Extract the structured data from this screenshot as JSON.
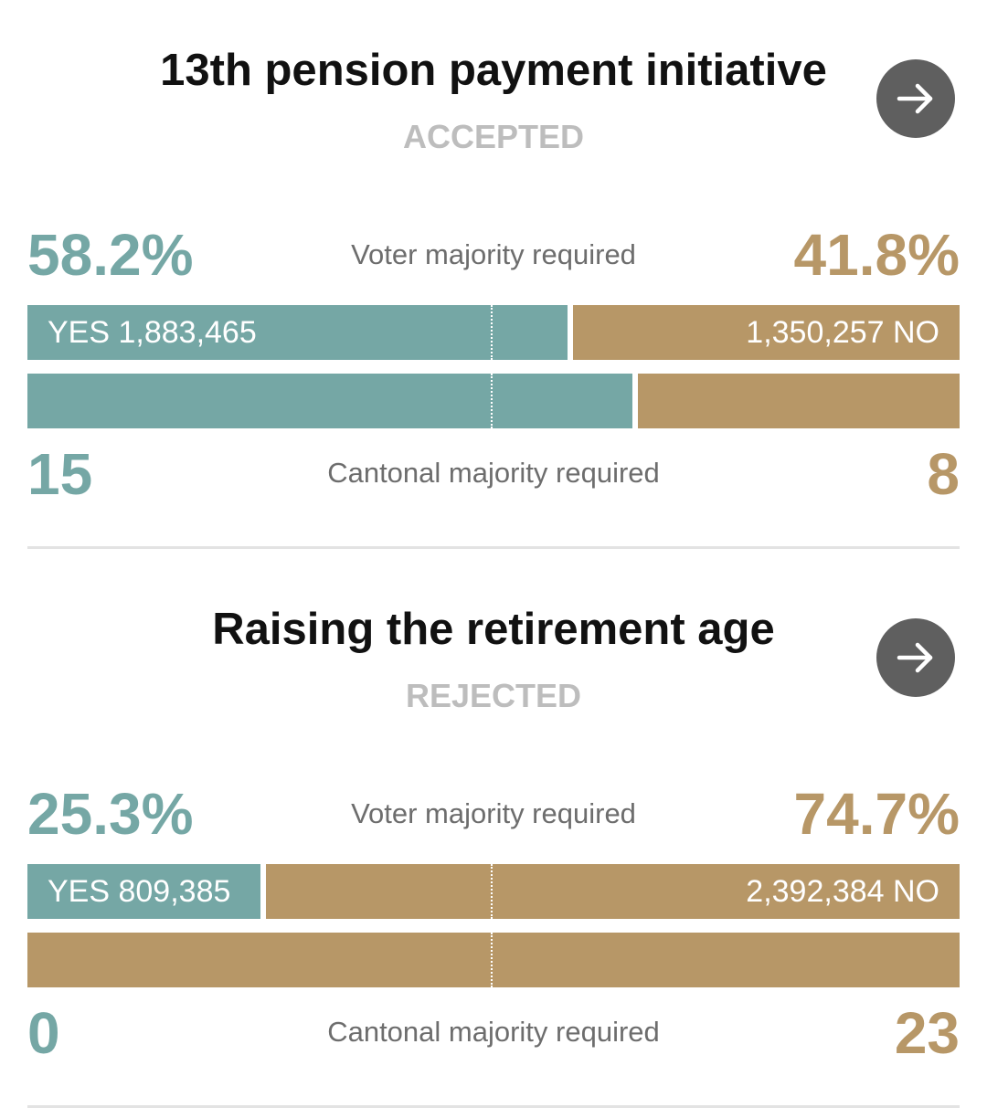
{
  "colors": {
    "yes": "#75a7a5",
    "no": "#b79767",
    "status": "#bdbdbd",
    "button": "#5f5f5f"
  },
  "votes": [
    {
      "title": "13th pension payment initiative",
      "status": "ACCEPTED",
      "arrow_icon": "arrow-right-icon",
      "yes_pct": "58.2%",
      "no_pct": "41.8%",
      "yes_share": 0.582,
      "voter_req": "Voter majority required",
      "yes_votes": "YES 1,883,465",
      "no_votes": "1,350,257 NO",
      "yes_cantons": "15",
      "no_cantons": "8",
      "canton_yes_share": 0.6522,
      "canton_req": "Cantonal majority required"
    },
    {
      "title": "Raising the retirement age",
      "status": "REJECTED",
      "arrow_icon": "arrow-right-icon",
      "yes_pct": "25.3%",
      "no_pct": "74.7%",
      "yes_share": 0.253,
      "voter_req": "Voter majority required",
      "yes_votes": "YES 809,385",
      "no_votes": "2,392,384 NO",
      "yes_cantons": "0",
      "no_cantons": "23",
      "canton_yes_share": 0,
      "canton_req": "Cantonal majority required"
    }
  ]
}
